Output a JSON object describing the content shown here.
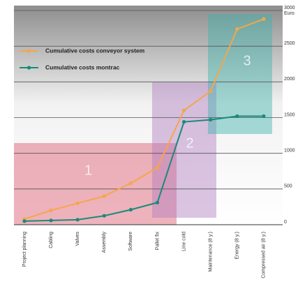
{
  "chart_data": {
    "type": "line",
    "categories": [
      "Project planning",
      "Cabling",
      "Valves",
      "Assembly",
      "Software",
      "Pallet fix",
      "Line cold",
      "Maintenance (8 y.)",
      "Energy (8 y.)",
      "Compressed air (8 y.)"
    ],
    "series": [
      {
        "name": "Cumulative costs conveyor system",
        "color": "#f5a64a",
        "values": [
          80,
          200,
          300,
          400,
          580,
          800,
          1600,
          1870,
          2740,
          2880
        ]
      },
      {
        "name": "Cumulative costs montrac",
        "color": "#1a8a7a",
        "values": [
          50,
          60,
          70,
          125,
          210,
          310,
          1440,
          1470,
          1520,
          1520
        ]
      }
    ],
    "y_axis_label": "Euro",
    "ylim": [
      0,
      3000
    ],
    "yticks": [
      0,
      500,
      1000,
      1500,
      2000,
      2500,
      3000
    ],
    "grid": true,
    "legend": "upper left",
    "regions": [
      {
        "label": "1",
        "color": "#d9566a"
      },
      {
        "label": "2",
        "color": "#b27cc0"
      },
      {
        "label": "3",
        "color": "#3fb3ad"
      }
    ]
  }
}
